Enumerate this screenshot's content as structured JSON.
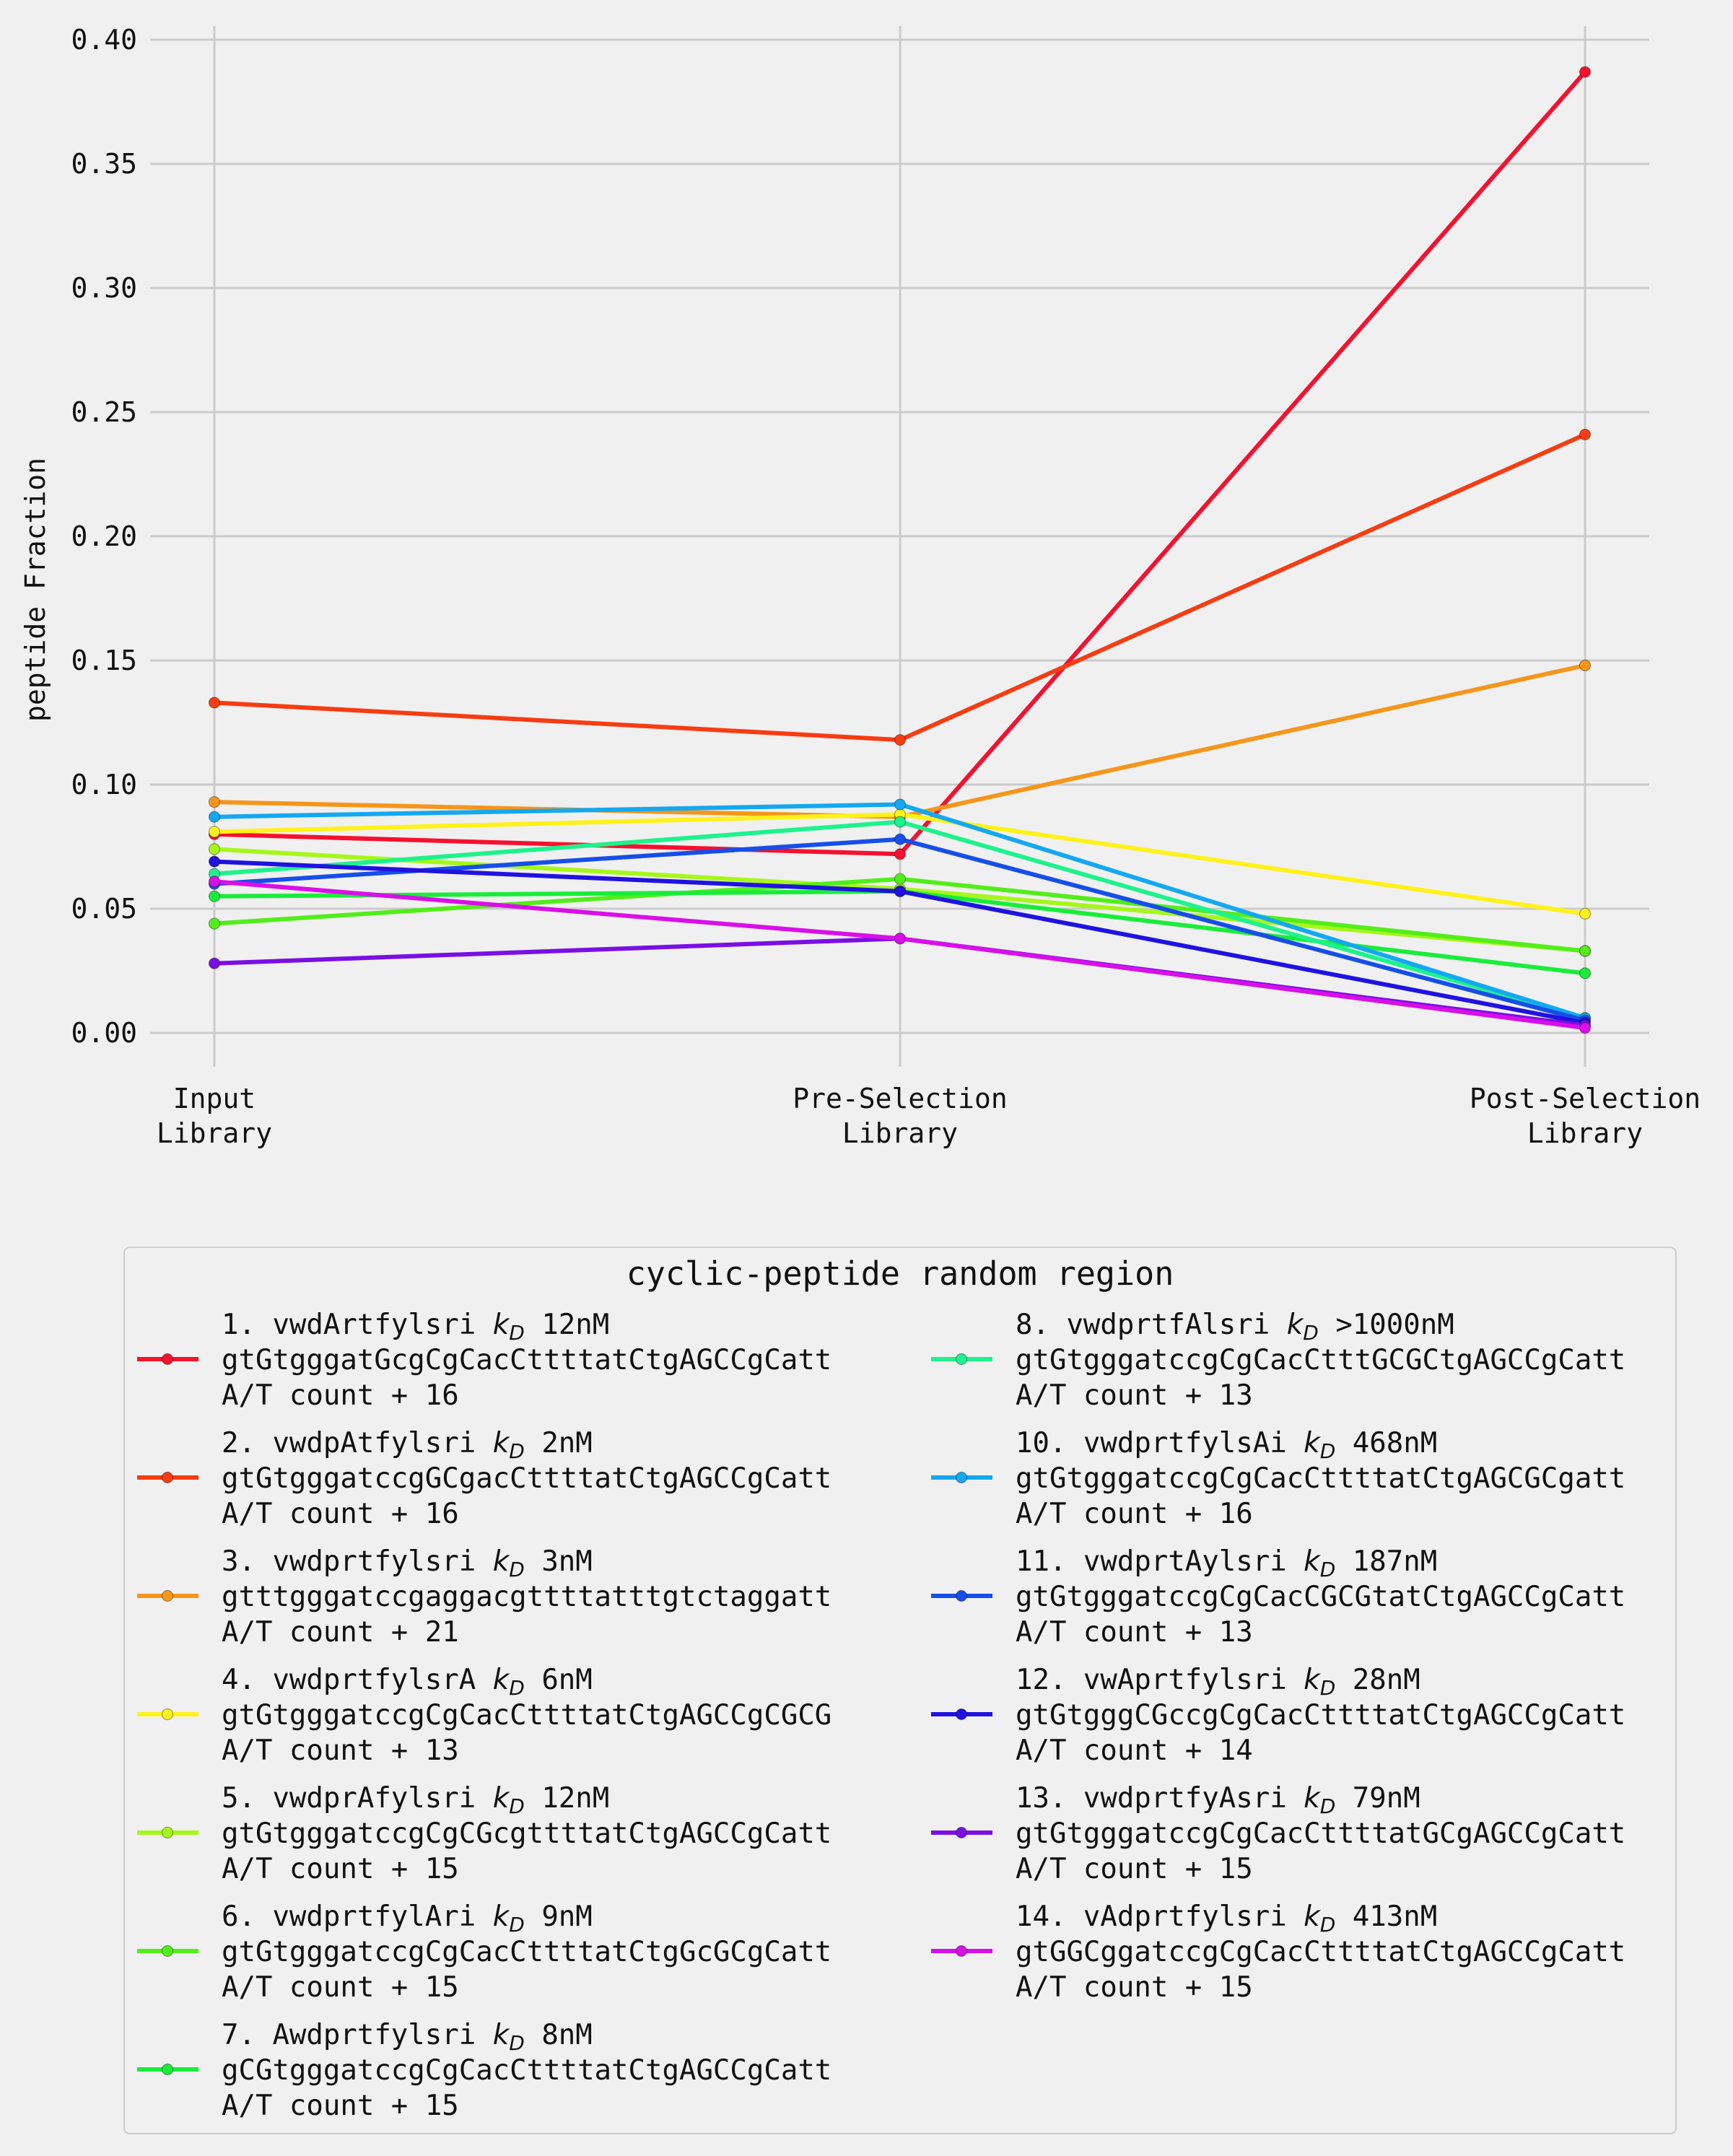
{
  "chart_data": {
    "type": "line",
    "categories": [
      "Input\nLibrary",
      "Pre-Selection\nLibrary",
      "Post-Selection\nLibrary"
    ],
    "ylabel": "peptide Fraction",
    "xlabel": "",
    "ylim": [
      -0.015,
      0.405
    ],
    "yticks": [
      "0.00",
      "0.05",
      "0.10",
      "0.15",
      "0.20",
      "0.25",
      "0.30",
      "0.35",
      "0.40"
    ],
    "grid": true,
    "legend": {
      "title": "cyclic-peptide random region",
      "placement": "below",
      "columns": 2
    },
    "series": [
      {
        "id": "1",
        "label1": "1. vwdArtfylsri",
        "kd": "12nM",
        "seq": "gtGtgggatGcgCgCacCttttatCtgAGCCgCatt",
        "at": "A/T count  + 16",
        "color": "#f5112f",
        "values": [
          0.08,
          0.072,
          0.387
        ]
      },
      {
        "id": "2",
        "label1": "2. vwdpAtfylsri",
        "kd": "2nM",
        "seq": "gtGtgggatccgGCgacCttttatCtgAGCCgCatt",
        "at": "A/T count  + 16",
        "color": "#f73c12",
        "values": [
          0.133,
          0.118,
          0.241
        ]
      },
      {
        "id": "3",
        "label1": "3. vwdprtfylsri",
        "kd": "3nM",
        "seq": "gtttgggatccgaggacgttttatttgtctaggatt",
        "at": "A/T count  + 21",
        "color": "#f5961a",
        "values": [
          0.093,
          0.087,
          0.148
        ]
      },
      {
        "id": "4",
        "label1": "4. vwdprtfylsrA",
        "kd": "6nM",
        "seq": "gtGtgggatccgCgCacCttttatCtgAGCCgCGCG",
        "at": "A/T count  + 13",
        "color": "#fff21a",
        "values": [
          0.081,
          0.088,
          0.048
        ]
      },
      {
        "id": "5",
        "label1": "5. vwdprAfylsri",
        "kd": "12nM",
        "seq": "gtGtgggatccgCgCGcgttttatCtgAGCCgCatt",
        "at": "A/T count  + 15",
        "color": "#a6f71a",
        "values": [
          0.074,
          0.058,
          0.033
        ]
      },
      {
        "id": "6",
        "label1": "6. vwdprtfylAri",
        "kd": "9nM",
        "seq": "gtGtgggatccgCgCacCttttatCtgGcGCgCatt",
        "at": "A/T count  + 15",
        "color": "#52ee1a",
        "values": [
          0.044,
          0.062,
          0.033
        ]
      },
      {
        "id": "7",
        "label1": "7. Awdprtfylsri",
        "kd": "8nM",
        "seq": "gCGtgggatccgCgCacCttttatCtgAGCCgCatt",
        "at": "A/T count  + 15",
        "color": "#19ed3a",
        "values": [
          0.055,
          0.057,
          0.024
        ]
      },
      {
        "id": "8",
        "label1": "8. vwdprtfAlsri",
        "kd": ">1000nM",
        "seq": "gtGtgggatccgCgCacCtttGCGCtgAGCCgCatt",
        "at": "A/T count  + 13",
        "color": "#1ef28d",
        "values": [
          0.064,
          0.085,
          0.006
        ]
      },
      {
        "id": "10",
        "label1": "10. vwdprtfylsAi",
        "kd": "468nM",
        "seq": "gtGtgggatccgCgCacCttttatCtgAGCGCgatt",
        "at": "A/T count  + 16",
        "color": "#14a8f0",
        "values": [
          0.087,
          0.092,
          0.006
        ]
      },
      {
        "id": "11",
        "label1": "11. vwdprtAylsri",
        "kd": "187nM",
        "seq": "gtGtgggatccgCgCacCGCGtatCtgAGCCgCatt",
        "at": "A/T count  + 13",
        "color": "#164ee8",
        "values": [
          0.06,
          0.078,
          0.005
        ]
      },
      {
        "id": "12",
        "label1": "12. vwAprtfylsri",
        "kd": "28nM",
        "seq": "gtGtgggCGccgCgCacCttttatCtgAGCCgCatt",
        "at": "A/T count  + 14",
        "color": "#2012e0",
        "values": [
          0.069,
          0.057,
          0.004
        ]
      },
      {
        "id": "13",
        "label1": "13. vwdprtfyAsri",
        "kd": "79nM",
        "seq": "gtGtgggatccgCgCacCttttatGCgAGCCgCatt",
        "at": "A/T count  + 15",
        "color": "#7a0fe3",
        "values": [
          0.028,
          0.038,
          0.003
        ]
      },
      {
        "id": "14",
        "label1": "14. vAdprtfylsri",
        "kd": "413nM",
        "seq": "gtGGCggatccgCgCacCttttatCtgAGCCgCatt",
        "at": "A/T count  + 15",
        "color": "#d90fe8",
        "values": [
          0.061,
          0.038,
          0.002
        ]
      }
    ]
  }
}
